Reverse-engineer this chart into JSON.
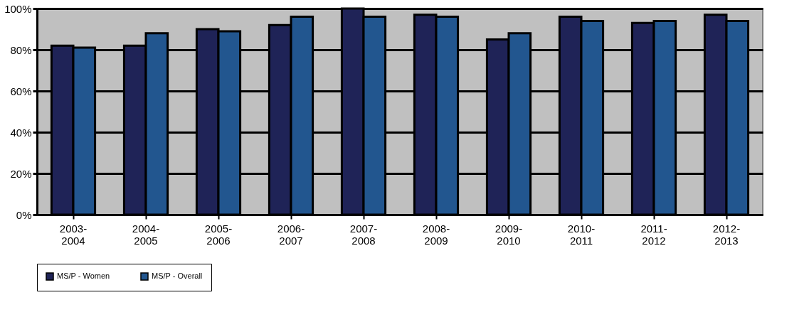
{
  "chart_data": {
    "type": "bar",
    "categories": [
      "2003-\n2004",
      "2004-\n2005",
      "2005-\n2006",
      "2006-\n2007",
      "2007-\n2008",
      "2008-\n2009",
      "2009-\n2010",
      "2010-\n2011",
      "2011-\n2012",
      "2012-\n2013"
    ],
    "series": [
      {
        "name": "MS/P - Women",
        "color": "#1f2357",
        "values": [
          82,
          82,
          90,
          92,
          100,
          97,
          85,
          96,
          93,
          97
        ]
      },
      {
        "name": "MS/P - Overall",
        "color": "#22568f",
        "values": [
          81,
          88,
          89,
          96,
          96,
          96,
          88,
          94,
          94,
          94
        ]
      }
    ],
    "ylim": [
      0,
      100
    ],
    "yticks": [
      {
        "value": 0,
        "label": "0%"
      },
      {
        "value": 20,
        "label": "20%"
      },
      {
        "value": 40,
        "label": "40%"
      },
      {
        "value": 60,
        "label": "60%"
      },
      {
        "value": 80,
        "label": "80%"
      },
      {
        "value": 100,
        "label": "100%"
      }
    ],
    "grid": "y",
    "legend": "bottom"
  }
}
